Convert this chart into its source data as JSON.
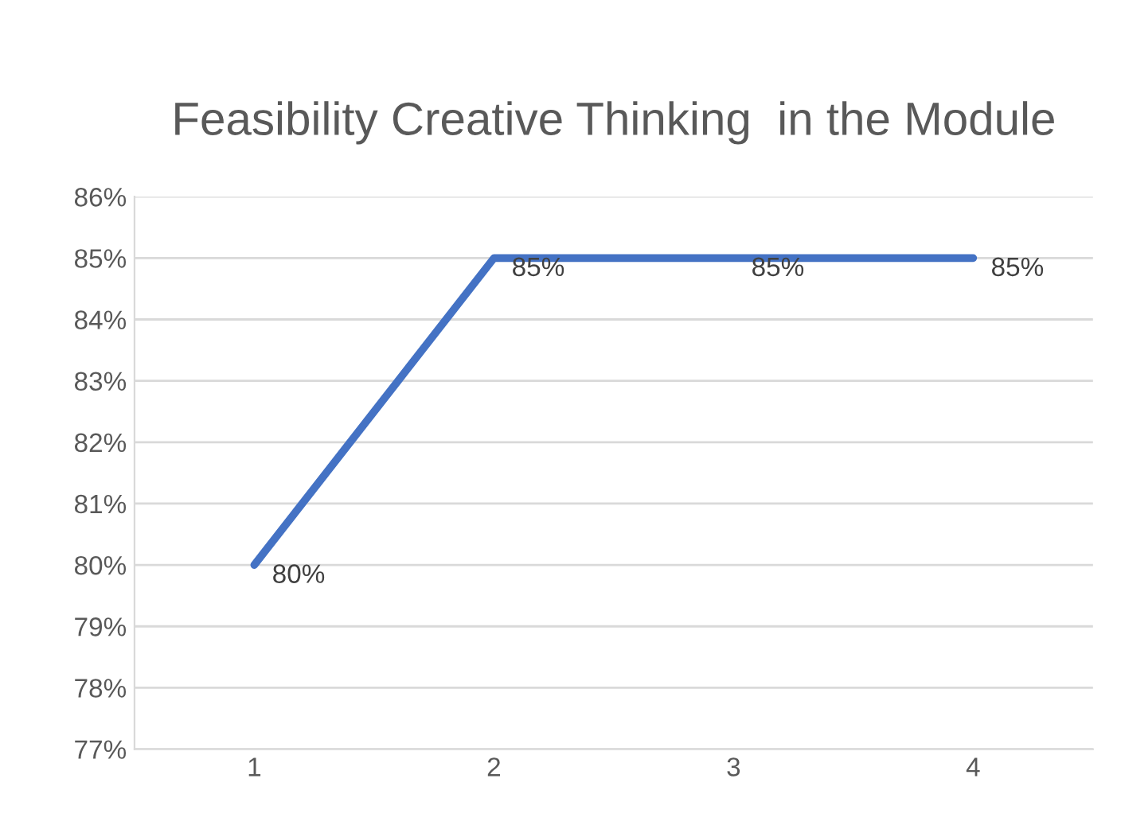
{
  "chart_data": {
    "type": "line",
    "title": "Feasibility Creative Thinking  in the Module",
    "categories": [
      "1",
      "2",
      "3",
      "4"
    ],
    "series": [
      {
        "color": "#4472c4",
        "values": [
          80,
          85,
          85,
          85
        ],
        "value_labels": [
          "80%",
          "85%",
          "85%",
          "85%"
        ]
      }
    ],
    "ylim": [
      77,
      86
    ],
    "yticks": [
      {
        "value": 77,
        "label": "77%"
      },
      {
        "value": 78,
        "label": "78%"
      },
      {
        "value": 79,
        "label": "79%"
      },
      {
        "value": 80,
        "label": "80%"
      },
      {
        "value": 81,
        "label": "81%"
      },
      {
        "value": 82,
        "label": "82%"
      },
      {
        "value": 83,
        "label": "83%"
      },
      {
        "value": 84,
        "label": "84%"
      },
      {
        "value": 85,
        "label": "85%"
      },
      {
        "value": 86,
        "label": "86%"
      }
    ],
    "grid": "y",
    "marker": "none",
    "line_style": "solid"
  }
}
